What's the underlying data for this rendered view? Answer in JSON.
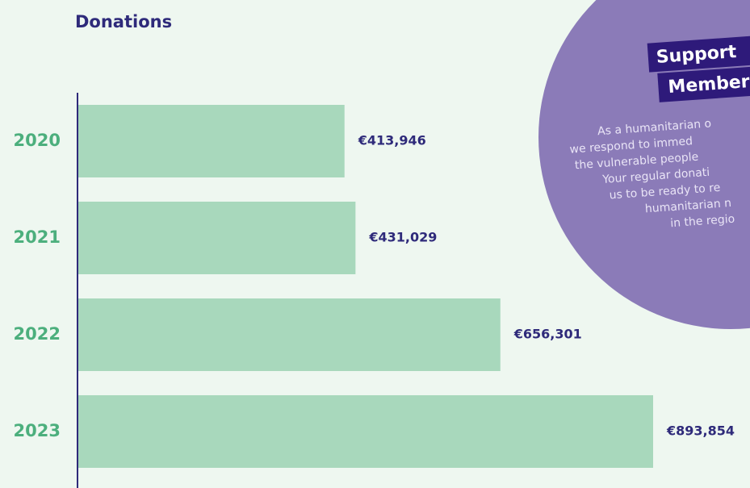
{
  "chart_data": {
    "type": "barh",
    "title": "Donations",
    "categories": [
      "2020",
      "2021",
      "2022",
      "2023"
    ],
    "values": [
      413946,
      431029,
      656301,
      893854
    ],
    "value_labels": [
      "€413,946",
      "€431,029",
      "€656,301",
      "€893,854"
    ],
    "color": "#a8d8bc"
  },
  "panel": {
    "title_lines": [
      "Support",
      "Members"
    ],
    "body_lines": [
      "As a humanitarian o",
      "we respond to immed",
      "the vulnerable people",
      "Your regular donati",
      "us to be ready to re",
      "humanitarian n",
      "in the regio"
    ]
  }
}
